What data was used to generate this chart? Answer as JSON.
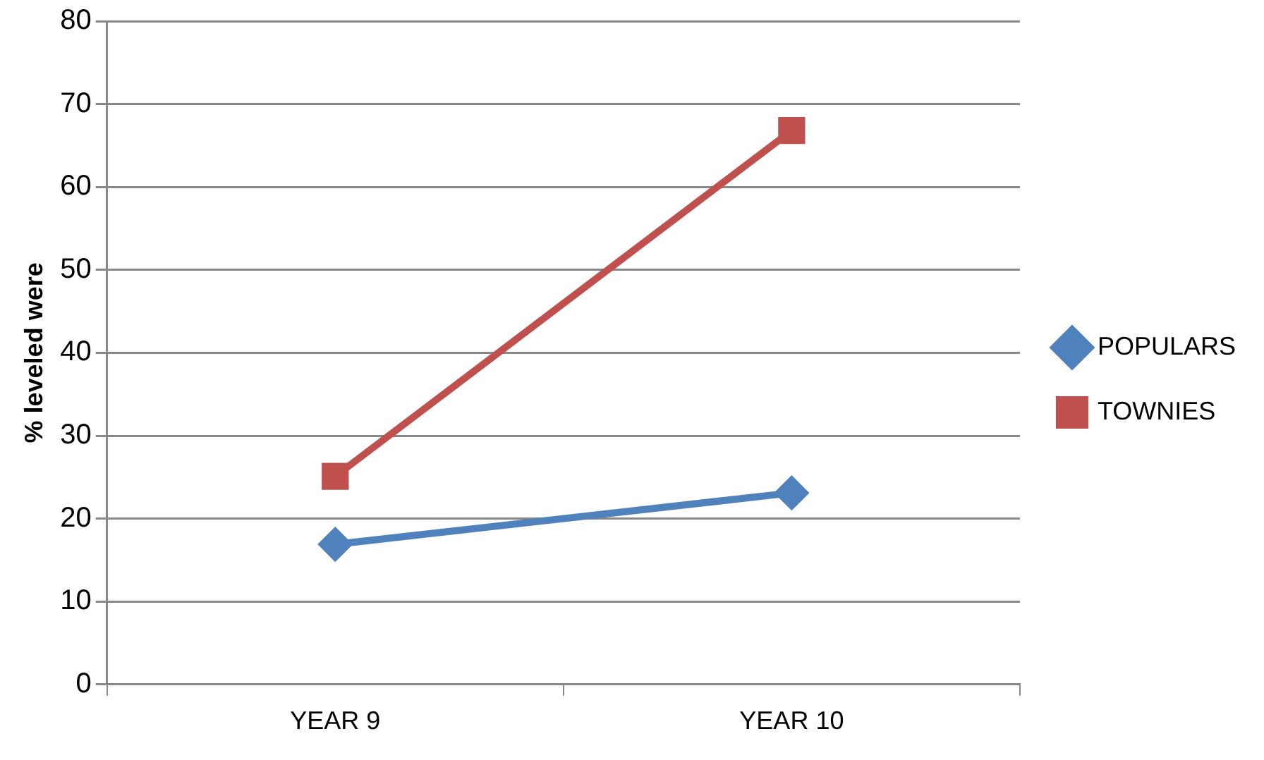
{
  "chart_data": {
    "type": "line",
    "ylabel": "% leveled were",
    "categories": [
      "YEAR 9",
      "YEAR 10"
    ],
    "series": [
      {
        "name": "POPULARS",
        "color": "#4f81bd",
        "marker": "diamond",
        "values": [
          16.9,
          23.1
        ]
      },
      {
        "name": "TOWNIES",
        "color": "#c0504d",
        "marker": "square",
        "values": [
          25.1,
          66.8
        ]
      }
    ],
    "ylim": [
      0,
      80
    ],
    "yticks": [
      0,
      10,
      20,
      30,
      40,
      50,
      60,
      70,
      80
    ],
    "grid": "y",
    "legend": "right",
    "line_style": "solid"
  }
}
